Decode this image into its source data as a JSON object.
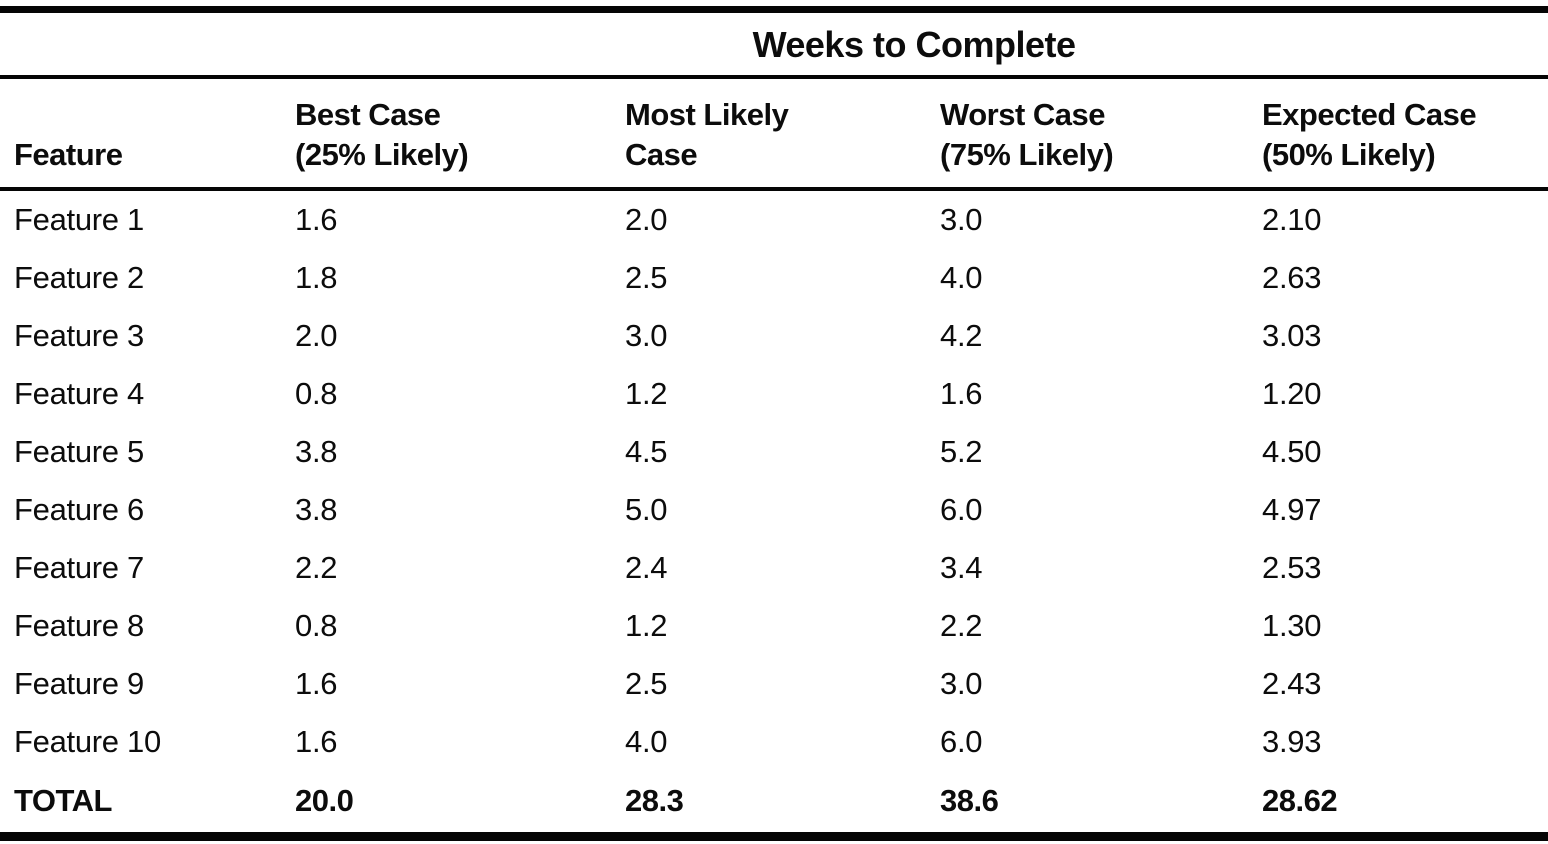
{
  "table": {
    "title": "Weeks to Complete",
    "columns": [
      {
        "line1": "Feature",
        "line2": ""
      },
      {
        "line1": "Best Case",
        "line2": "(25% Likely)"
      },
      {
        "line1": "Most Likely",
        "line2": "Case"
      },
      {
        "line1": "Worst Case",
        "line2": "(75% Likely)"
      },
      {
        "line1": "Expected Case",
        "line2": "(50% Likely)"
      }
    ],
    "rows": [
      {
        "feature": "Feature 1",
        "best_case": "1.6",
        "most_likely": "2.0",
        "worst_case": "3.0",
        "expected": "2.10"
      },
      {
        "feature": "Feature 2",
        "best_case": "1.8",
        "most_likely": "2.5",
        "worst_case": "4.0",
        "expected": "2.63"
      },
      {
        "feature": "Feature 3",
        "best_case": "2.0",
        "most_likely": "3.0",
        "worst_case": "4.2",
        "expected": "3.03"
      },
      {
        "feature": "Feature 4",
        "best_case": "0.8",
        "most_likely": "1.2",
        "worst_case": "1.6",
        "expected": "1.20"
      },
      {
        "feature": "Feature 5",
        "best_case": "3.8",
        "most_likely": "4.5",
        "worst_case": "5.2",
        "expected": "4.50"
      },
      {
        "feature": "Feature 6",
        "best_case": "3.8",
        "most_likely": "5.0",
        "worst_case": "6.0",
        "expected": "4.97"
      },
      {
        "feature": "Feature 7",
        "best_case": "2.2",
        "most_likely": "2.4",
        "worst_case": "3.4",
        "expected": "2.53"
      },
      {
        "feature": "Feature 8",
        "best_case": "0.8",
        "most_likely": "1.2",
        "worst_case": "2.2",
        "expected": "1.30"
      },
      {
        "feature": "Feature 9",
        "best_case": "1.6",
        "most_likely": "2.5",
        "worst_case": "3.0",
        "expected": "2.43"
      },
      {
        "feature": "Feature 10",
        "best_case": "1.6",
        "most_likely": "4.0",
        "worst_case": "6.0",
        "expected": "3.93"
      }
    ],
    "total_row": {
      "feature": "TOTAL",
      "best_case": "20.0",
      "most_likely": "28.3",
      "worst_case": "38.6",
      "expected": "28.62"
    }
  },
  "chart_data": {
    "type": "table",
    "title": "Weeks to Complete",
    "columns": [
      "Feature",
      "Best Case (25% Likely)",
      "Most Likely Case",
      "Worst Case (75% Likely)",
      "Expected Case (50% Likely)"
    ],
    "categories": [
      "Feature 1",
      "Feature 2",
      "Feature 3",
      "Feature 4",
      "Feature 5",
      "Feature 6",
      "Feature 7",
      "Feature 8",
      "Feature 9",
      "Feature 10"
    ],
    "series": [
      {
        "name": "Best Case (25% Likely)",
        "values": [
          1.6,
          1.8,
          2.0,
          0.8,
          3.8,
          3.8,
          2.2,
          0.8,
          1.6,
          1.6
        ]
      },
      {
        "name": "Most Likely Case",
        "values": [
          2.0,
          2.5,
          3.0,
          1.2,
          4.5,
          5.0,
          2.4,
          1.2,
          2.5,
          4.0
        ]
      },
      {
        "name": "Worst Case (75% Likely)",
        "values": [
          3.0,
          4.0,
          4.2,
          1.6,
          5.2,
          6.0,
          3.4,
          2.2,
          3.0,
          6.0
        ]
      },
      {
        "name": "Expected Case (50% Likely)",
        "values": [
          2.1,
          2.63,
          3.03,
          1.2,
          4.5,
          4.97,
          2.53,
          1.3,
          2.43,
          3.93
        ]
      }
    ],
    "totals": {
      "best_case": 20.0,
      "most_likely": 28.3,
      "worst_case": 38.6,
      "expected": 28.62
    },
    "ink_color": "#0c0c0c",
    "background_color": "#ffffff"
  }
}
